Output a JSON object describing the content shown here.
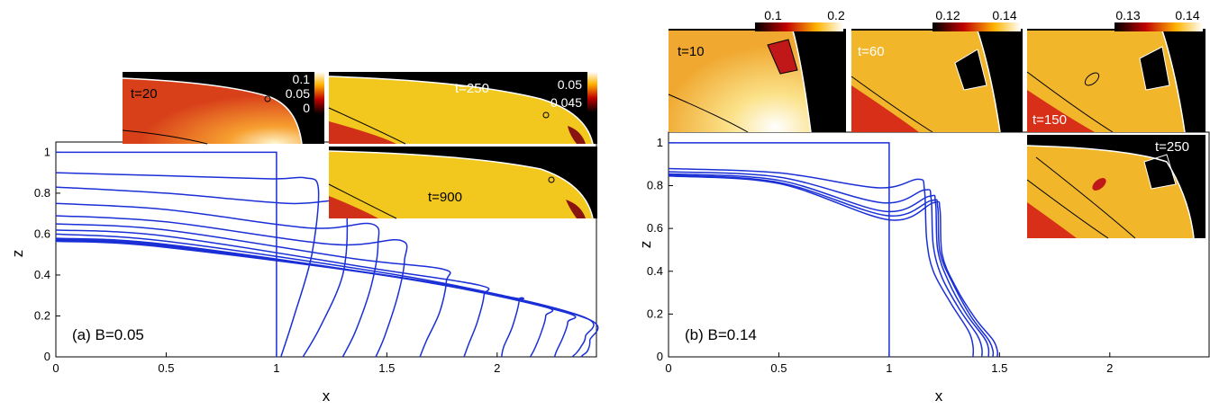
{
  "chart_data": [
    {
      "type": "line",
      "annotation": "(a) B=0.05",
      "xlabel": "x",
      "ylabel": "z",
      "xlim": [
        0,
        2.45
      ],
      "ylim": [
        0,
        1.05
      ],
      "xticks": [
        "0",
        "0.5",
        "1",
        "1.5",
        "2"
      ],
      "yticks": [
        "0",
        "0.2",
        "0.4",
        "0.6",
        "0.8",
        "1"
      ],
      "series": [
        {
          "x": [
            1,
            1,
            0
          ],
          "y": [
            0,
            1,
            1
          ]
        },
        {
          "x": [
            0,
            0.5,
            0.98,
            1.13,
            1.19,
            1.16,
            1.08,
            1.02
          ],
          "y": [
            0.9,
            0.885,
            0.87,
            0.875,
            0.82,
            0.5,
            0.2,
            0
          ]
        },
        {
          "x": [
            0,
            0.5,
            1.05,
            1.29,
            1.32,
            1.3,
            1.2,
            1.12
          ],
          "y": [
            0.83,
            0.8,
            0.75,
            0.76,
            0.66,
            0.4,
            0.15,
            0
          ]
        },
        {
          "x": [
            0,
            0.5,
            1.15,
            1.43,
            1.46,
            1.43,
            1.36,
            1.3
          ],
          "y": [
            0.75,
            0.72,
            0.63,
            0.65,
            0.55,
            0.35,
            0.13,
            0
          ]
        },
        {
          "x": [
            0,
            0.5,
            1.25,
            1.56,
            1.58,
            1.55,
            1.49,
            1.45
          ],
          "y": [
            0.69,
            0.66,
            0.55,
            0.57,
            0.47,
            0.3,
            0.1,
            0
          ]
        },
        {
          "x": [
            0,
            0.5,
            1.35,
            1.75,
            1.77,
            1.74,
            1.68,
            1.65
          ],
          "y": [
            0.65,
            0.62,
            0.48,
            0.43,
            0.37,
            0.22,
            0.08,
            0
          ]
        },
        {
          "x": [
            0,
            0.5,
            1.45,
            1.92,
            1.94,
            1.91,
            1.87,
            1.85
          ],
          "y": [
            0.62,
            0.59,
            0.43,
            0.35,
            0.3,
            0.17,
            0.06,
            0
          ]
        },
        {
          "x": [
            0,
            0.5,
            1.55,
            2.07,
            2.1,
            2.07,
            2.03,
            2.02
          ],
          "y": [
            0.6,
            0.565,
            0.4,
            0.29,
            0.28,
            0.15,
            0.05,
            0
          ]
        },
        {
          "x": [
            0,
            0.5,
            1.6,
            2.2,
            2.22,
            2.2,
            2.17,
            2.15
          ],
          "y": [
            0.58,
            0.55,
            0.38,
            0.25,
            0.2,
            0.12,
            0.04,
            0
          ]
        },
        {
          "x": [
            0,
            0.5,
            1.65,
            2.3,
            2.32,
            2.3,
            2.27,
            2.26
          ],
          "y": [
            0.575,
            0.545,
            0.37,
            0.22,
            0.17,
            0.1,
            0.03,
            0
          ]
        },
        {
          "x": [
            0,
            0.5,
            1.7,
            2.38,
            2.4,
            2.38,
            2.36,
            2.34
          ],
          "y": [
            0.57,
            0.54,
            0.365,
            0.2,
            0.1,
            0.05,
            0.02,
            0
          ]
        },
        {
          "x": [
            0,
            0.5,
            1.72,
            2.4,
            2.42,
            2.41,
            2.39,
            2.38
          ],
          "y": [
            0.565,
            0.535,
            0.36,
            0.19,
            0.08,
            0.03,
            0.01,
            0
          ]
        }
      ]
    },
    {
      "type": "line",
      "annotation": "(b) B=0.14",
      "xlabel": "x",
      "ylabel": "z",
      "xlim": [
        0,
        2.45
      ],
      "ylim": [
        0,
        1.05
      ],
      "xticks": [
        "0",
        "0.5",
        "1",
        "1.5",
        "2"
      ],
      "yticks": [
        "0",
        "0.2",
        "0.4",
        "0.6",
        "0.8",
        "1"
      ],
      "series": [
        {
          "x": [
            1,
            1,
            0
          ],
          "y": [
            0,
            1,
            1
          ]
        },
        {
          "x": [
            0,
            0.5,
            0.95,
            1.13,
            1.16,
            1.17,
            1.2,
            1.28,
            1.36,
            1.38,
            1.38
          ],
          "y": [
            0.88,
            0.86,
            0.79,
            0.83,
            0.78,
            0.55,
            0.4,
            0.25,
            0.12,
            0.05,
            0
          ]
        },
        {
          "x": [
            0,
            0.5,
            0.97,
            1.16,
            1.19,
            1.2,
            1.24,
            1.32,
            1.4,
            1.42,
            1.42
          ],
          "y": [
            0.865,
            0.84,
            0.72,
            0.78,
            0.74,
            0.52,
            0.37,
            0.22,
            0.1,
            0.04,
            0
          ]
        },
        {
          "x": [
            0,
            0.5,
            0.98,
            1.18,
            1.21,
            1.22,
            1.27,
            1.35,
            1.43,
            1.45,
            1.45
          ],
          "y": [
            0.855,
            0.825,
            0.68,
            0.75,
            0.72,
            0.5,
            0.35,
            0.2,
            0.09,
            0.04,
            0
          ]
        },
        {
          "x": [
            0,
            0.5,
            0.99,
            1.19,
            1.22,
            1.23,
            1.29,
            1.37,
            1.45,
            1.47,
            1.47
          ],
          "y": [
            0.85,
            0.815,
            0.66,
            0.73,
            0.7,
            0.49,
            0.34,
            0.19,
            0.08,
            0.03,
            0
          ]
        },
        {
          "x": [
            0,
            0.5,
            1.0,
            1.2,
            1.23,
            1.24,
            1.3,
            1.39,
            1.47,
            1.49,
            1.49
          ],
          "y": [
            0.845,
            0.81,
            0.64,
            0.72,
            0.69,
            0.48,
            0.33,
            0.18,
            0.08,
            0.03,
            0
          ]
        }
      ]
    }
  ],
  "insets": [
    {
      "label": "t=20",
      "cb_ticks": [
        "0.1",
        "0.05",
        "0"
      ]
    },
    {
      "label": "t=250",
      "cb_ticks": [
        "0.05",
        "0.045"
      ]
    },
    {
      "label": "t=900"
    },
    {
      "label": "t=10",
      "cb_ticks": [
        "0.1",
        "0.2"
      ]
    },
    {
      "label": "t=60",
      "cb_ticks": [
        "0.12",
        "0.14"
      ]
    },
    {
      "label": "t=150",
      "cb_ticks": [
        "0.13",
        "0.14"
      ]
    },
    {
      "label": "t=250"
    }
  ],
  "colors": {
    "line": "#1a2fd6",
    "inset_bg": "#000000",
    "hot": "#f2c21f"
  }
}
